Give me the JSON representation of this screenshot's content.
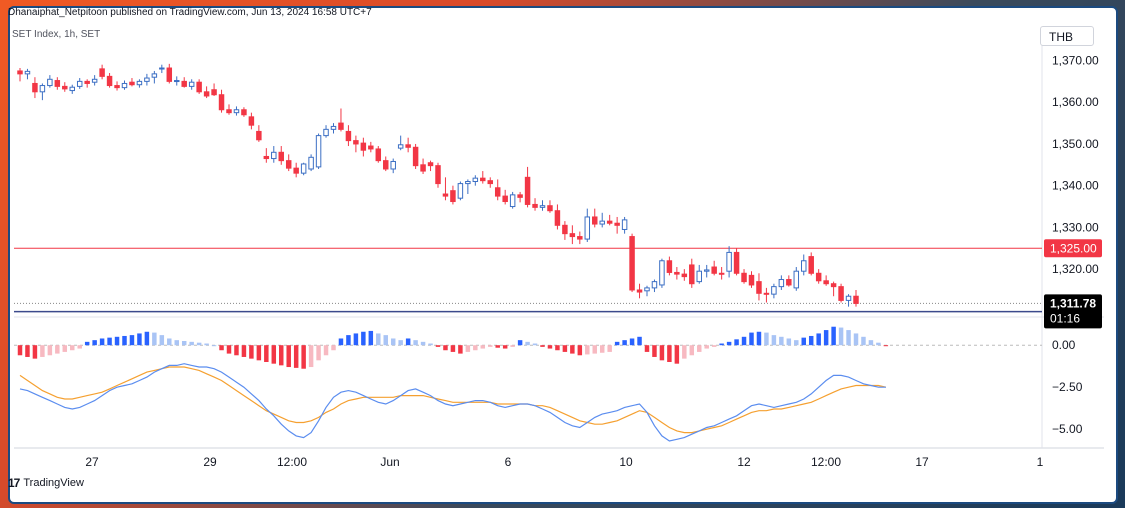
{
  "header": {
    "published": "Dhanaiphat_Netpitoon published on TradingView.com, Jun 13, 2024 16:58 UTC+7",
    "symbol": "SET Index, 1h, SET",
    "currency": "THB"
  },
  "footer": {
    "logo_text": "TradingView",
    "logo_mark": "17"
  },
  "colors": {
    "up": "#3c6fc4",
    "down": "#f23645",
    "hist_pos_strong": "#2962ff",
    "hist_pos_weak": "#a9c4f5",
    "hist_neg_strong": "#f23645",
    "hist_neg_weak": "#f7b9c1",
    "macd": "#5b8def",
    "signal": "#f5a030",
    "resistance": "#f23645",
    "support": "#3c4a8c"
  },
  "chart_data": [
    {
      "type": "candlestick",
      "title": "SET Index, 1h, SET",
      "ylim": [
        1309,
        1373
      ],
      "y_ticks": [
        1320,
        1330,
        1340,
        1350,
        1360,
        1370
      ],
      "y_tick_labels": [
        "1,320.00",
        "1,330.00",
        "1,340.00",
        "1,350.00",
        "1,360.00",
        "1,370.00"
      ],
      "x_tick_labels": [
        "27",
        "29",
        "12:00",
        "Jun",
        "6",
        "10",
        "12",
        "12:00",
        "17",
        "1"
      ],
      "price_labels": {
        "last": "1,311.78",
        "countdown": "01:16",
        "level": "1,325.00"
      },
      "horizontal_levels": [
        1325.0,
        1309.8
      ],
      "candles": [
        [
          1367.5,
          1368.2,
          1365.0,
          1366.8
        ],
        [
          1366.8,
          1368.0,
          1365.5,
          1367.4
        ],
        [
          1364.5,
          1366.0,
          1361.0,
          1362.5
        ],
        [
          1362.5,
          1364.5,
          1360.5,
          1364.0
        ],
        [
          1364.0,
          1366.5,
          1363.5,
          1365.5
        ],
        [
          1365.2,
          1366.0,
          1363.0,
          1363.8
        ],
        [
          1363.8,
          1364.8,
          1362.5,
          1363.2
        ],
        [
          1362.8,
          1364.2,
          1362.0,
          1363.6
        ],
        [
          1363.8,
          1365.8,
          1363.2,
          1365.0
        ],
        [
          1365.0,
          1365.5,
          1363.5,
          1364.5
        ],
        [
          1364.8,
          1366.5,
          1364.0,
          1365.5
        ],
        [
          1368.0,
          1369.0,
          1365.5,
          1366.2
        ],
        [
          1366.2,
          1367.0,
          1363.5,
          1364.0
        ],
        [
          1364.0,
          1365.0,
          1362.8,
          1363.5
        ],
        [
          1363.5,
          1365.2,
          1363.0,
          1364.5
        ],
        [
          1364.8,
          1365.8,
          1363.8,
          1364.2
        ],
        [
          1364.2,
          1365.5,
          1363.5,
          1365.0
        ],
        [
          1365.0,
          1366.8,
          1364.0,
          1365.8
        ],
        [
          1366.0,
          1367.5,
          1364.5,
          1366.8
        ],
        [
          1368.0,
          1369.0,
          1367.0,
          1368.2
        ],
        [
          1368.2,
          1369.2,
          1364.5,
          1365.0
        ],
        [
          1365.0,
          1366.2,
          1364.0,
          1365.2
        ],
        [
          1365.0,
          1366.0,
          1363.5,
          1363.8
        ],
        [
          1363.8,
          1365.5,
          1363.0,
          1364.8
        ],
        [
          1364.8,
          1365.5,
          1362.0,
          1362.5
        ],
        [
          1362.5,
          1363.8,
          1361.0,
          1361.5
        ],
        [
          1363.0,
          1364.5,
          1361.5,
          1361.8
        ],
        [
          1361.8,
          1363.0,
          1357.5,
          1358.2
        ],
        [
          1358.2,
          1359.5,
          1357.0,
          1357.5
        ],
        [
          1357.5,
          1359.0,
          1356.8,
          1358.2
        ],
        [
          1358.2,
          1358.8,
          1356.5,
          1357.0
        ],
        [
          1356.5,
          1357.5,
          1353.5,
          1354.5
        ],
        [
          1353.0,
          1354.5,
          1350.5,
          1351.0
        ],
        [
          1347.0,
          1349.0,
          1345.5,
          1346.5
        ],
        [
          1346.5,
          1349.5,
          1345.5,
          1348.0
        ],
        [
          1348.0,
          1349.5,
          1345.0,
          1346.0
        ],
        [
          1346.0,
          1347.5,
          1343.5,
          1344.2
        ],
        [
          1344.2,
          1345.5,
          1342.0,
          1343.0
        ],
        [
          1343.0,
          1345.5,
          1342.5,
          1345.2
        ],
        [
          1344.0,
          1347.5,
          1343.5,
          1346.8
        ],
        [
          1344.5,
          1352.5,
          1344.0,
          1352.0
        ],
        [
          1352.0,
          1354.5,
          1351.5,
          1353.5
        ],
        [
          1353.5,
          1355.0,
          1352.5,
          1354.2
        ],
        [
          1355.0,
          1358.5,
          1353.0,
          1353.5
        ],
        [
          1353.0,
          1354.5,
          1349.5,
          1350.8
        ],
        [
          1350.8,
          1352.0,
          1348.0,
          1350.0
        ],
        [
          1350.2,
          1351.5,
          1347.0,
          1348.5
        ],
        [
          1349.5,
          1350.5,
          1348.0,
          1348.8
        ],
        [
          1348.8,
          1349.5,
          1345.5,
          1346.0
        ],
        [
          1346.0,
          1347.0,
          1343.5,
          1344.0
        ],
        [
          1344.0,
          1346.5,
          1343.0,
          1345.8
        ],
        [
          1349.0,
          1352.0,
          1348.5,
          1349.8
        ],
        [
          1349.8,
          1351.5,
          1348.0,
          1349.2
        ],
        [
          1349.2,
          1350.0,
          1344.0,
          1344.8
        ],
        [
          1345.0,
          1346.5,
          1342.8,
          1343.5
        ],
        [
          1345.5,
          1346.0,
          1343.5,
          1344.8
        ],
        [
          1344.8,
          1345.5,
          1339.5,
          1340.5
        ],
        [
          1338.0,
          1342.0,
          1336.5,
          1337.5
        ],
        [
          1338.8,
          1340.0,
          1335.5,
          1336.2
        ],
        [
          1337.0,
          1341.0,
          1336.5,
          1340.5
        ],
        [
          1340.5,
          1341.5,
          1338.0,
          1341.0
        ],
        [
          1341.0,
          1342.5,
          1340.0,
          1341.8
        ],
        [
          1341.8,
          1343.5,
          1340.5,
          1341.2
        ],
        [
          1341.2,
          1342.0,
          1339.5,
          1340.5
        ],
        [
          1339.5,
          1341.5,
          1336.5,
          1337.5
        ],
        [
          1337.5,
          1339.0,
          1335.5,
          1336.2
        ],
        [
          1335.0,
          1338.5,
          1334.5,
          1337.8
        ],
        [
          1337.8,
          1338.5,
          1336.0,
          1337.2
        ],
        [
          1342.0,
          1344.5,
          1334.8,
          1335.5
        ],
        [
          1335.5,
          1337.0,
          1334.0,
          1334.8
        ],
        [
          1334.8,
          1336.5,
          1334.0,
          1335.2
        ],
        [
          1335.2,
          1336.5,
          1333.5,
          1334.0
        ],
        [
          1334.0,
          1335.5,
          1329.5,
          1330.5
        ],
        [
          1330.5,
          1331.5,
          1327.0,
          1328.5
        ],
        [
          1328.5,
          1330.5,
          1326.0,
          1327.8
        ],
        [
          1327.8,
          1329.0,
          1326.0,
          1327.2
        ],
        [
          1327.2,
          1334.5,
          1326.5,
          1332.5
        ],
        [
          1332.5,
          1334.5,
          1330.0,
          1330.8
        ],
        [
          1330.8,
          1333.5,
          1330.0,
          1331.5
        ],
        [
          1331.5,
          1333.0,
          1330.5,
          1331.0
        ],
        [
          1331.0,
          1332.5,
          1328.5,
          1330.5
        ],
        [
          1329.5,
          1332.5,
          1328.5,
          1331.8
        ],
        [
          1327.8,
          1328.5,
          1314.5,
          1315.0
        ],
        [
          1315.0,
          1316.5,
          1313.0,
          1314.5
        ],
        [
          1314.8,
          1316.0,
          1313.5,
          1315.5
        ],
        [
          1315.5,
          1317.5,
          1314.5,
          1317.0
        ],
        [
          1316.2,
          1322.5,
          1315.5,
          1322.0
        ],
        [
          1322.0,
          1323.0,
          1318.5,
          1319.2
        ],
        [
          1319.2,
          1320.5,
          1317.5,
          1318.8
        ],
        [
          1318.8,
          1320.0,
          1317.2,
          1318.2
        ],
        [
          1321.0,
          1322.5,
          1315.5,
          1316.5
        ],
        [
          1317.0,
          1321.0,
          1316.5,
          1319.5
        ],
        [
          1319.5,
          1321.0,
          1318.0,
          1319.8
        ],
        [
          1320.5,
          1322.0,
          1318.5,
          1319.0
        ],
        [
          1319.0,
          1320.5,
          1317.5,
          1318.8
        ],
        [
          1319.5,
          1325.5,
          1318.0,
          1324.0
        ],
        [
          1324.0,
          1325.0,
          1318.5,
          1319.0
        ],
        [
          1319.0,
          1320.0,
          1316.5,
          1317.0
        ],
        [
          1318.5,
          1319.5,
          1315.5,
          1316.2
        ],
        [
          1317.0,
          1319.0,
          1312.5,
          1314.2
        ],
        [
          1314.2,
          1315.5,
          1312.0,
          1314.0
        ],
        [
          1314.0,
          1316.5,
          1313.0,
          1315.8
        ],
        [
          1315.8,
          1318.5,
          1315.0,
          1317.5
        ],
        [
          1317.5,
          1318.5,
          1315.8,
          1316.2
        ],
        [
          1315.5,
          1320.5,
          1314.8,
          1319.5
        ],
        [
          1319.5,
          1323.5,
          1318.5,
          1322.0
        ],
        [
          1323.0,
          1324.0,
          1318.5,
          1319.0
        ],
        [
          1319.0,
          1320.0,
          1316.5,
          1317.2
        ],
        [
          1317.2,
          1318.5,
          1316.0,
          1316.5
        ],
        [
          1316.5,
          1317.0,
          1313.5,
          1315.8
        ],
        [
          1315.8,
          1316.5,
          1312.0,
          1312.5
        ],
        [
          1312.5,
          1314.0,
          1311.0,
          1313.5
        ],
        [
          1313.5,
          1315.0,
          1311.0,
          1311.78
        ]
      ]
    },
    {
      "type": "macd",
      "ylim": [
        -6.0,
        1.5
      ],
      "y_ticks": [
        0,
        -2.5,
        -5
      ],
      "y_tick_labels": [
        "0.00",
        "−2.50",
        "−5.00"
      ],
      "histogram": [
        -0.6,
        -0.7,
        -0.8,
        -0.7,
        -0.6,
        -0.5,
        -0.4,
        -0.3,
        -0.2,
        0.2,
        0.3,
        0.4,
        0.45,
        0.5,
        0.55,
        0.6,
        0.7,
        0.8,
        0.75,
        0.6,
        0.4,
        0.3,
        0.25,
        0.2,
        0.15,
        0.1,
        0.0,
        -0.3,
        -0.5,
        -0.6,
        -0.7,
        -0.8,
        -0.9,
        -1.0,
        -1.1,
        -1.2,
        -1.3,
        -1.35,
        -1.4,
        -1.3,
        -0.9,
        -0.6,
        -0.3,
        0.4,
        0.6,
        0.7,
        0.8,
        0.85,
        0.7,
        0.6,
        0.4,
        0.3,
        0.4,
        0.3,
        0.2,
        0.1,
        -0.1,
        -0.3,
        -0.4,
        -0.5,
        -0.4,
        -0.3,
        -0.2,
        -0.1,
        -0.15,
        -0.2,
        -0.1,
        0.3,
        0.2,
        0.1,
        -0.1,
        -0.2,
        -0.3,
        -0.4,
        -0.5,
        -0.6,
        -0.55,
        -0.5,
        -0.45,
        -0.4,
        0.2,
        0.3,
        0.4,
        0.5,
        -0.4,
        -0.7,
        -0.9,
        -1.0,
        -1.1,
        -0.8,
        -0.6,
        -0.4,
        -0.2,
        -0.1,
        0.1,
        0.2,
        0.35,
        0.5,
        0.75,
        0.8,
        0.75,
        0.6,
        0.5,
        0.4,
        0.3,
        0.45,
        0.55,
        0.7,
        0.9,
        1.1,
        1.05,
        0.9,
        0.7,
        0.5,
        0.3,
        0.15,
        -0.05
      ],
      "macd": [
        -2.6,
        -2.7,
        -2.9,
        -3.1,
        -3.3,
        -3.5,
        -3.7,
        -3.8,
        -3.7,
        -3.5,
        -3.3,
        -3.0,
        -2.7,
        -2.5,
        -2.4,
        -2.3,
        -2.1,
        -1.9,
        -1.6,
        -1.4,
        -1.2,
        -1.2,
        -1.1,
        -1.2,
        -1.3,
        -1.3,
        -1.4,
        -1.6,
        -1.9,
        -2.2,
        -2.5,
        -2.9,
        -3.3,
        -3.8,
        -4.2,
        -4.7,
        -5.1,
        -5.4,
        -5.5,
        -5.2,
        -4.5,
        -3.7,
        -3.1,
        -2.8,
        -2.7,
        -2.8,
        -3.0,
        -3.2,
        -3.4,
        -3.5,
        -3.3,
        -3.0,
        -2.7,
        -2.6,
        -2.8,
        -3.0,
        -3.3,
        -3.5,
        -3.6,
        -3.5,
        -3.4,
        -3.3,
        -3.3,
        -3.4,
        -3.6,
        -3.7,
        -3.6,
        -3.5,
        -3.5,
        -3.6,
        -3.8,
        -4.0,
        -4.3,
        -4.6,
        -4.8,
        -4.9,
        -4.6,
        -4.3,
        -4.1,
        -4.0,
        -3.9,
        -3.7,
        -3.6,
        -3.5,
        -4.0,
        -4.8,
        -5.4,
        -5.7,
        -5.6,
        -5.5,
        -5.3,
        -5.1,
        -4.9,
        -4.8,
        -4.6,
        -4.4,
        -4.2,
        -3.9,
        -3.6,
        -3.5,
        -3.6,
        -3.7,
        -3.6,
        -3.5,
        -3.4,
        -3.2,
        -2.9,
        -2.5,
        -2.1,
        -1.8,
        -1.8,
        -1.9,
        -2.1,
        -2.3,
        -2.4,
        -2.5,
        -2.5
      ],
      "signal": [
        -1.8,
        -2.1,
        -2.4,
        -2.7,
        -2.9,
        -3.1,
        -3.2,
        -3.2,
        -3.1,
        -3.0,
        -2.9,
        -2.8,
        -2.6,
        -2.4,
        -2.2,
        -2.0,
        -1.8,
        -1.6,
        -1.5,
        -1.4,
        -1.3,
        -1.3,
        -1.3,
        -1.4,
        -1.5,
        -1.7,
        -1.9,
        -2.1,
        -2.4,
        -2.7,
        -3.0,
        -3.3,
        -3.6,
        -3.9,
        -4.1,
        -4.3,
        -4.5,
        -4.6,
        -4.6,
        -4.5,
        -4.3,
        -4.0,
        -3.8,
        -3.5,
        -3.3,
        -3.2,
        -3.1,
        -3.1,
        -3.1,
        -3.1,
        -3.1,
        -3.0,
        -3.0,
        -3.0,
        -3.0,
        -3.1,
        -3.2,
        -3.3,
        -3.4,
        -3.4,
        -3.4,
        -3.4,
        -3.4,
        -3.4,
        -3.5,
        -3.5,
        -3.5,
        -3.5,
        -3.5,
        -3.6,
        -3.6,
        -3.7,
        -3.9,
        -4.1,
        -4.3,
        -4.5,
        -4.6,
        -4.7,
        -4.7,
        -4.6,
        -4.5,
        -4.3,
        -4.1,
        -3.9,
        -4.0,
        -4.3,
        -4.6,
        -4.9,
        -5.1,
        -5.2,
        -5.2,
        -5.1,
        -5.0,
        -4.9,
        -4.8,
        -4.6,
        -4.4,
        -4.2,
        -4.0,
        -3.9,
        -3.9,
        -3.8,
        -3.8,
        -3.7,
        -3.6,
        -3.5,
        -3.4,
        -3.2,
        -3.0,
        -2.8,
        -2.6,
        -2.5,
        -2.4,
        -2.4,
        -2.4,
        -2.4,
        -2.5
      ]
    }
  ]
}
